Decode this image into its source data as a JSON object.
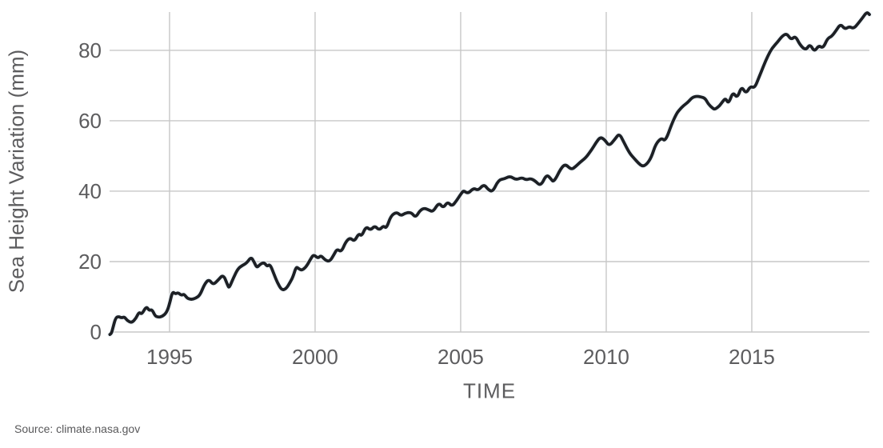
{
  "chart_data": {
    "type": "line",
    "title": "",
    "xlabel": "TIME",
    "ylabel": "Sea Height Variation (mm)",
    "source": "Source: climate.nasa.gov",
    "x_ticks": [
      "1995",
      "2000",
      "2005",
      "2010",
      "2015"
    ],
    "x_tick_values": [
      1995,
      2000,
      2005,
      2010,
      2015
    ],
    "y_ticks": [
      "0",
      "20",
      "40",
      "60",
      "80"
    ],
    "y_tick_values": [
      0,
      20,
      40,
      60,
      80
    ],
    "xlim": [
      1992.94,
      2019.04
    ],
    "ylim": [
      0,
      90.9
    ],
    "grid": true,
    "legend_position": "none",
    "colors": {
      "line": "#1d2025",
      "line_halo": "#e9f2f7",
      "grid": "#c7c7c7",
      "tick_text": "#5c5c5e",
      "axis_title_text": "#5c5c5e",
      "source_text": "#58585a",
      "background": "#ffffff"
    },
    "series": [
      {
        "name": "sea-height-variation",
        "points": [
          [
            1992.95,
            -0.7
          ],
          [
            1993.0,
            -0.5
          ],
          [
            1993.05,
            1.0
          ],
          [
            1993.15,
            4.1
          ],
          [
            1993.25,
            4.4
          ],
          [
            1993.35,
            4.0
          ],
          [
            1993.45,
            4.3
          ],
          [
            1993.55,
            3.2
          ],
          [
            1993.7,
            2.6
          ],
          [
            1993.85,
            3.9
          ],
          [
            1993.95,
            5.7
          ],
          [
            1994.05,
            5.0
          ],
          [
            1994.2,
            7.3
          ],
          [
            1994.3,
            6.1
          ],
          [
            1994.4,
            6.4
          ],
          [
            1994.5,
            4.6
          ],
          [
            1994.6,
            4.2
          ],
          [
            1994.75,
            4.4
          ],
          [
            1994.9,
            5.5
          ],
          [
            1995.0,
            8.0
          ],
          [
            1995.1,
            11.5
          ],
          [
            1995.2,
            10.8
          ],
          [
            1995.3,
            11.2
          ],
          [
            1995.4,
            10.4
          ],
          [
            1995.5,
            10.8
          ],
          [
            1995.6,
            9.6
          ],
          [
            1995.75,
            9.2
          ],
          [
            1995.9,
            9.6
          ],
          [
            1996.05,
            10.5
          ],
          [
            1996.2,
            13.6
          ],
          [
            1996.35,
            15.0
          ],
          [
            1996.5,
            13.4
          ],
          [
            1996.65,
            14.6
          ],
          [
            1996.85,
            16.4
          ],
          [
            1997.0,
            13.2
          ],
          [
            1997.05,
            12.5
          ],
          [
            1997.2,
            15.5
          ],
          [
            1997.35,
            18.0
          ],
          [
            1997.5,
            18.9
          ],
          [
            1997.65,
            19.6
          ],
          [
            1997.8,
            21.3
          ],
          [
            1997.9,
            20.0
          ],
          [
            1998.0,
            18.2
          ],
          [
            1998.1,
            19.2
          ],
          [
            1998.25,
            19.8
          ],
          [
            1998.35,
            18.6
          ],
          [
            1998.45,
            19.3
          ],
          [
            1998.6,
            16.2
          ],
          [
            1998.7,
            14.1
          ],
          [
            1998.85,
            11.9
          ],
          [
            1999.0,
            12.2
          ],
          [
            1999.15,
            14.2
          ],
          [
            1999.25,
            15.9
          ],
          [
            1999.35,
            18.6
          ],
          [
            1999.45,
            17.9
          ],
          [
            1999.55,
            17.5
          ],
          [
            1999.7,
            18.6
          ],
          [
            1999.85,
            20.8
          ],
          [
            1999.95,
            22.0
          ],
          [
            2000.1,
            20.9
          ],
          [
            2000.2,
            21.8
          ],
          [
            2000.35,
            20.4
          ],
          [
            2000.5,
            20.0
          ],
          [
            2000.65,
            22.0
          ],
          [
            2000.75,
            23.6
          ],
          [
            2000.9,
            22.7
          ],
          [
            2001.05,
            25.6
          ],
          [
            2001.2,
            26.8
          ],
          [
            2001.35,
            25.7
          ],
          [
            2001.5,
            28.0
          ],
          [
            2001.6,
            27.2
          ],
          [
            2001.75,
            30.0
          ],
          [
            2001.9,
            28.9
          ],
          [
            2002.05,
            30.2
          ],
          [
            2002.2,
            28.9
          ],
          [
            2002.35,
            30.2
          ],
          [
            2002.45,
            29.4
          ],
          [
            2002.6,
            33.0
          ],
          [
            2002.8,
            34.1
          ],
          [
            2002.95,
            33.0
          ],
          [
            2003.1,
            33.8
          ],
          [
            2003.3,
            34.0
          ],
          [
            2003.45,
            32.5
          ],
          [
            2003.6,
            34.5
          ],
          [
            2003.75,
            35.2
          ],
          [
            2003.9,
            34.7
          ],
          [
            2004.05,
            34.1
          ],
          [
            2004.25,
            36.8
          ],
          [
            2004.4,
            35.2
          ],
          [
            2004.55,
            37.0
          ],
          [
            2004.7,
            35.7
          ],
          [
            2004.85,
            37.2
          ],
          [
            2005.0,
            39.1
          ],
          [
            2005.1,
            40.2
          ],
          [
            2005.25,
            39.3
          ],
          [
            2005.45,
            40.9
          ],
          [
            2005.6,
            40.2
          ],
          [
            2005.8,
            42.0
          ],
          [
            2005.95,
            40.4
          ],
          [
            2006.1,
            39.8
          ],
          [
            2006.3,
            43.2
          ],
          [
            2006.5,
            43.5
          ],
          [
            2006.7,
            44.3
          ],
          [
            2006.9,
            43.2
          ],
          [
            2007.1,
            43.9
          ],
          [
            2007.25,
            43.2
          ],
          [
            2007.4,
            43.6
          ],
          [
            2007.55,
            43.0
          ],
          [
            2007.75,
            41.4
          ],
          [
            2007.95,
            44.8
          ],
          [
            2008.1,
            43.5
          ],
          [
            2008.2,
            42.5
          ],
          [
            2008.45,
            46.6
          ],
          [
            2008.6,
            47.7
          ],
          [
            2008.8,
            46.1
          ],
          [
            2008.95,
            47.0
          ],
          [
            2009.1,
            48.2
          ],
          [
            2009.3,
            49.5
          ],
          [
            2009.5,
            51.8
          ],
          [
            2009.65,
            53.8
          ],
          [
            2009.8,
            55.4
          ],
          [
            2009.95,
            54.6
          ],
          [
            2010.1,
            52.8
          ],
          [
            2010.3,
            54.8
          ],
          [
            2010.45,
            56.4
          ],
          [
            2010.6,
            54.0
          ],
          [
            2010.8,
            50.8
          ],
          [
            2010.95,
            49.4
          ],
          [
            2011.1,
            48.0
          ],
          [
            2011.25,
            47.0
          ],
          [
            2011.4,
            47.7
          ],
          [
            2011.55,
            49.6
          ],
          [
            2011.7,
            53.4
          ],
          [
            2011.9,
            55.2
          ],
          [
            2012.03,
            54.1
          ],
          [
            2012.25,
            59.1
          ],
          [
            2012.4,
            61.8
          ],
          [
            2012.5,
            63.0
          ],
          [
            2012.65,
            64.3
          ],
          [
            2012.8,
            65.2
          ],
          [
            2012.95,
            66.6
          ],
          [
            2013.1,
            67.0
          ],
          [
            2013.25,
            66.8
          ],
          [
            2013.4,
            66.4
          ],
          [
            2013.5,
            64.8
          ],
          [
            2013.65,
            63.6
          ],
          [
            2013.73,
            63.2
          ],
          [
            2013.9,
            64.3
          ],
          [
            2014.0,
            65.5
          ],
          [
            2014.1,
            66.4
          ],
          [
            2014.2,
            64.8
          ],
          [
            2014.35,
            68.2
          ],
          [
            2014.5,
            66.4
          ],
          [
            2014.65,
            69.8
          ],
          [
            2014.8,
            67.7
          ],
          [
            2014.95,
            69.8
          ],
          [
            2015.1,
            69.3
          ],
          [
            2015.25,
            72.4
          ],
          [
            2015.4,
            75.5
          ],
          [
            2015.55,
            78.4
          ],
          [
            2015.7,
            80.7
          ],
          [
            2015.9,
            82.5
          ],
          [
            2016.05,
            84.1
          ],
          [
            2016.2,
            84.8
          ],
          [
            2016.35,
            83.0
          ],
          [
            2016.5,
            84.1
          ],
          [
            2016.65,
            81.6
          ],
          [
            2016.85,
            80.0
          ],
          [
            2017.0,
            81.8
          ],
          [
            2017.15,
            79.6
          ],
          [
            2017.3,
            81.4
          ],
          [
            2017.45,
            80.6
          ],
          [
            2017.6,
            83.4
          ],
          [
            2017.75,
            84.0
          ],
          [
            2017.9,
            85.7
          ],
          [
            2018.05,
            87.5
          ],
          [
            2018.2,
            86.0
          ],
          [
            2018.35,
            86.8
          ],
          [
            2018.5,
            86.2
          ],
          [
            2018.65,
            87.6
          ],
          [
            2018.8,
            89.2
          ],
          [
            2018.95,
            90.9
          ],
          [
            2019.04,
            90.2
          ]
        ]
      }
    ]
  }
}
